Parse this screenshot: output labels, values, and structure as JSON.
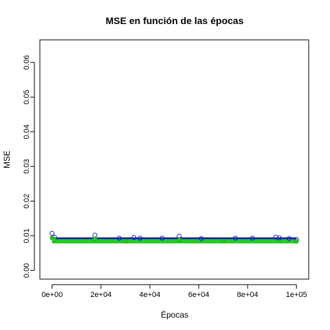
{
  "chart_data": {
    "type": "scatter",
    "title": "MSE en función de las épocas",
    "xlabel": "Épocas",
    "ylabel": "MSE",
    "xlim": [
      -5000,
      105000
    ],
    "ylim": [
      -0.0025,
      0.0665
    ],
    "xticks": [
      0,
      20000,
      40000,
      60000,
      80000,
      100000
    ],
    "xtick_labels": [
      "0e+00",
      "2e+04",
      "4e+04",
      "6e+04",
      "8e+04",
      "1e+05"
    ],
    "yticks": [
      0.0,
      0.01,
      0.02,
      0.03,
      0.04,
      0.05,
      0.06
    ],
    "ytick_labels": [
      "0.00",
      "0.01",
      "0.02",
      "0.03",
      "0.04",
      "0.05",
      "0.06"
    ],
    "grid": false,
    "legend": null,
    "series": [
      {
        "color": "#1a1acc",
        "marker": "circle-open",
        "baseline": 0.0089,
        "x": [
          0,
          1000,
          17500,
          27500,
          33500,
          36000,
          45000,
          52000,
          61000,
          75000,
          82000,
          91500,
          93000,
          97000,
          100000
        ],
        "values": [
          0.0107,
          0.0096,
          0.0102,
          0.0093,
          0.0095,
          0.0093,
          0.0093,
          0.0099,
          0.0092,
          0.0093,
          0.0093,
          0.0096,
          0.0094,
          0.0092,
          0.0089
        ]
      },
      {
        "color": "#22cc22",
        "marker": "circle-filled",
        "baseline": 0.0084,
        "x": [
          0,
          800,
          17500,
          30000,
          52000,
          70000,
          100000
        ],
        "values": [
          0.0094,
          0.0089,
          0.0091,
          0.0085,
          0.0088,
          0.0085,
          0.0084
        ]
      }
    ]
  }
}
